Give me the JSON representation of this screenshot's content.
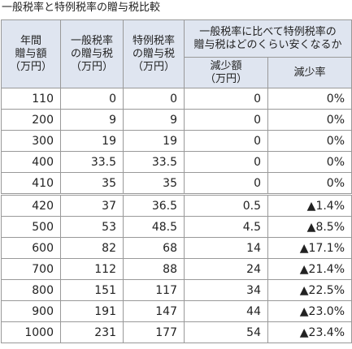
{
  "title": "一般税率と特例税率の贈与税比較",
  "table": {
    "headers": {
      "year_gift": [
        "年間",
        "贈与額",
        "（万円）"
      ],
      "general_tax": [
        "一般税率",
        "の贈与税",
        "（万円）"
      ],
      "special_tax": [
        "特例税率",
        "の贈与税",
        "（万円）"
      ],
      "group": [
        "一般税率に比べて特例税率の",
        "贈与税はどのくらい安くなるか"
      ],
      "reduction_amount": [
        "減少額",
        "（万円）"
      ],
      "reduction_rate": [
        "減少率"
      ]
    },
    "rows": [
      [
        "110",
        "0",
        "0",
        "0",
        "0%"
      ],
      [
        "200",
        "9",
        "9",
        "0",
        "0%"
      ],
      [
        "300",
        "19",
        "19",
        "0",
        "0%"
      ],
      [
        "400",
        "33.5",
        "33.5",
        "0",
        "0%"
      ],
      [
        "410",
        "35",
        "35",
        "0",
        "0%"
      ],
      [
        "420",
        "37",
        "36.5",
        "0.5",
        "▲1.4%"
      ],
      [
        "500",
        "53",
        "48.5",
        "4.5",
        "▲8.5%"
      ],
      [
        "600",
        "82",
        "68",
        "14",
        "▲17.1%"
      ],
      [
        "700",
        "112",
        "88",
        "24",
        "▲21.4%"
      ],
      [
        "800",
        "151",
        "117",
        "34",
        "▲22.5%"
      ],
      [
        "900",
        "191",
        "147",
        "44",
        "▲23.0%"
      ],
      [
        "1000",
        "231",
        "177",
        "54",
        "▲23.4%"
      ]
    ]
  }
}
